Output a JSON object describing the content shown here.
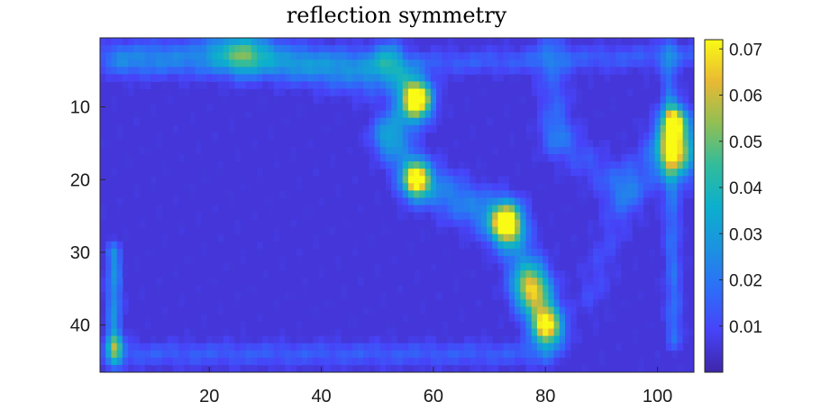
{
  "chart_data": {
    "type": "heatmap",
    "title": "reflection symmetry",
    "xlabel": "",
    "ylabel": "",
    "x_range": [
      0.5,
      106.5
    ],
    "y_range": [
      0.5,
      46.5
    ],
    "y_reversed": true,
    "x_ticks": [
      20,
      40,
      60,
      80,
      100
    ],
    "y_ticks": [
      10,
      20,
      30,
      40
    ],
    "colormap": "parula",
    "colorbar": {
      "range": [
        0.0,
        0.072
      ],
      "ticks": [
        0.01,
        0.02,
        0.03,
        0.04,
        0.05,
        0.06,
        0.07
      ],
      "tick_labels": [
        "0.01",
        "0.02",
        "0.03",
        "0.04",
        "0.05",
        "0.06",
        "0.07"
      ]
    },
    "background_value": 0.004,
    "features": [
      {
        "kind": "line",
        "from": [
          30,
          2
        ],
        "to": [
          2,
          3
        ],
        "value": 0.014,
        "width": 1.5
      },
      {
        "kind": "line",
        "from": [
          4,
          4
        ],
        "to": [
          53,
          4
        ],
        "value": 0.016,
        "width": 1.5
      },
      {
        "kind": "line",
        "from": [
          22,
          2
        ],
        "to": [
          48,
          6
        ],
        "value": 0.018,
        "width": 2.0
      },
      {
        "kind": "line",
        "from": [
          52,
          4
        ],
        "to": [
          57,
          9
        ],
        "value": 0.03,
        "width": 2.0
      },
      {
        "kind": "line",
        "from": [
          57,
          9
        ],
        "to": [
          52,
          14
        ],
        "value": 0.02,
        "width": 2.0
      },
      {
        "kind": "line",
        "from": [
          52,
          14
        ],
        "to": [
          57,
          20
        ],
        "value": 0.018,
        "width": 2.0
      },
      {
        "kind": "line",
        "from": [
          57,
          20
        ],
        "to": [
          73,
          26
        ],
        "value": 0.022,
        "width": 2.2
      },
      {
        "kind": "line",
        "from": [
          73,
          26
        ],
        "to": [
          78,
          35
        ],
        "value": 0.02,
        "width": 2.2
      },
      {
        "kind": "line",
        "from": [
          78,
          35
        ],
        "to": [
          81,
          41
        ],
        "value": 0.024,
        "width": 2.0
      },
      {
        "kind": "line",
        "from": [
          4,
          44
        ],
        "to": [
          80,
          44
        ],
        "value": 0.014,
        "width": 1.2
      },
      {
        "kind": "line",
        "from": [
          57,
          4
        ],
        "to": [
          106,
          3
        ],
        "value": 0.014,
        "width": 1.2
      },
      {
        "kind": "line",
        "from": [
          3,
          30
        ],
        "to": [
          3,
          45
        ],
        "value": 0.026,
        "width": 0.9
      },
      {
        "kind": "line",
        "from": [
          102,
          2
        ],
        "to": [
          103,
          42
        ],
        "value": 0.018,
        "width": 1.0
      },
      {
        "kind": "line",
        "from": [
          81,
          2
        ],
        "to": [
          82,
          14
        ],
        "value": 0.014,
        "width": 2.0
      },
      {
        "kind": "line",
        "from": [
          82,
          14
        ],
        "to": [
          94,
          22
        ],
        "value": 0.012,
        "width": 2.0
      },
      {
        "kind": "line",
        "from": [
          94,
          22
        ],
        "to": [
          88,
          36
        ],
        "value": 0.01,
        "width": 2.0
      },
      {
        "kind": "blob",
        "at": [
          57,
          9
        ],
        "value": 0.052,
        "radius": 1.6
      },
      {
        "kind": "blob",
        "at": [
          57,
          20
        ],
        "value": 0.058,
        "radius": 1.5
      },
      {
        "kind": "blob",
        "at": [
          73,
          26
        ],
        "value": 0.06,
        "radius": 1.8
      },
      {
        "kind": "blob",
        "at": [
          80,
          40
        ],
        "value": 0.058,
        "radius": 1.8
      },
      {
        "kind": "blob",
        "at": [
          77,
          35
        ],
        "value": 0.034,
        "radius": 2.2
      },
      {
        "kind": "blob",
        "at": [
          103,
          16
        ],
        "value": 0.068,
        "radius": 2.5
      },
      {
        "kind": "blob",
        "at": [
          103,
          12
        ],
        "value": 0.062,
        "radius": 1.5
      },
      {
        "kind": "blob",
        "at": [
          26,
          3
        ],
        "value": 0.022,
        "radius": 2.0
      },
      {
        "kind": "blob",
        "at": [
          3,
          43
        ],
        "value": 0.03,
        "radius": 1.2
      },
      {
        "kind": "blob",
        "at": [
          96,
          20
        ],
        "value": 0.014,
        "radius": 2.5
      }
    ]
  }
}
